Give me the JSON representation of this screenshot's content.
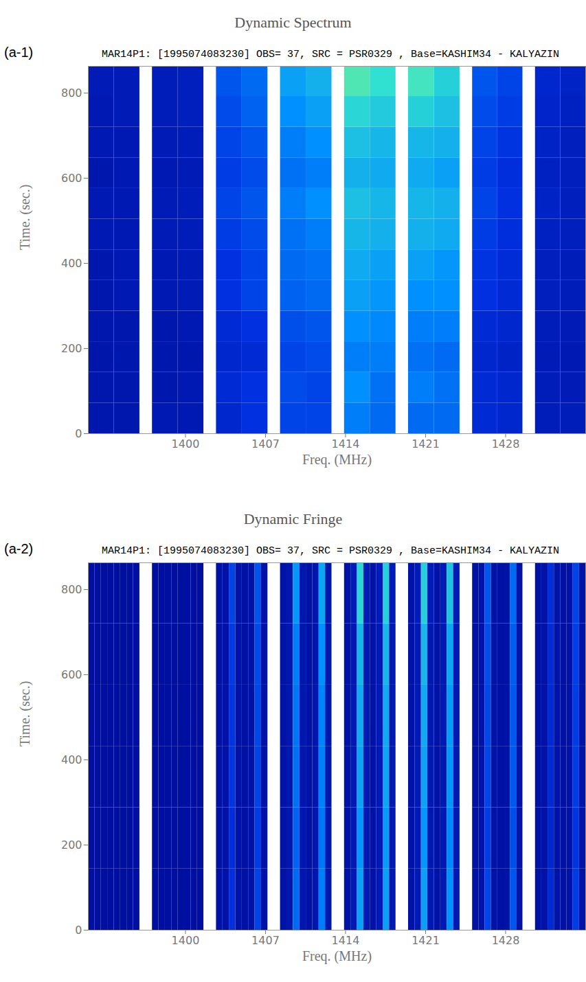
{
  "chart_data": [
    {
      "type": "heatmap",
      "title": "Dynamic Spectrum",
      "panel_label": "(a-1)",
      "subtitle": "MAR14P1: [1995074083230] OBS= 37, SRC = PSR0329 , Base=KASHIM34 - KALYAZIN",
      "x_label": "Freq. (MHz)",
      "y_label": "Time. (sec.)",
      "xlim": [
        1391.5,
        1435.0
      ],
      "xticks": [
        1400,
        1407,
        1414,
        1421,
        1428
      ],
      "ylim": [
        0,
        863
      ],
      "yticks": [
        0,
        200,
        400,
        600,
        800
      ],
      "zlim": [
        0,
        1
      ],
      "bands": [
        [
          1391.5,
          1396.0
        ],
        [
          1397.1,
          1401.6
        ],
        [
          1402.7,
          1407.2
        ],
        [
          1408.3,
          1412.8
        ],
        [
          1413.9,
          1418.4
        ],
        [
          1419.5,
          1424.0
        ],
        [
          1425.1,
          1429.5
        ],
        [
          1430.6,
          1435.0
        ]
      ],
      "time_edges": [
        0,
        72,
        144,
        216,
        288,
        360,
        432,
        504,
        576,
        648,
        720,
        792,
        863
      ],
      "cells": [
        [
          [
            0.12,
            0.12
          ],
          [
            0.13,
            0.13
          ],
          [
            0.2,
            0.25
          ],
          [
            0.3,
            0.3
          ],
          [
            0.45,
            0.4
          ],
          [
            0.4,
            0.4
          ],
          [
            0.22,
            0.2
          ],
          [
            0.15,
            0.15
          ]
        ],
        [
          [
            0.12,
            0.12
          ],
          [
            0.12,
            0.13
          ],
          [
            0.22,
            0.25
          ],
          [
            0.32,
            0.3
          ],
          [
            0.5,
            0.42
          ],
          [
            0.45,
            0.42
          ],
          [
            0.22,
            0.2
          ],
          [
            0.15,
            0.14
          ]
        ],
        [
          [
            0.11,
            0.12
          ],
          [
            0.12,
            0.12
          ],
          [
            0.2,
            0.22
          ],
          [
            0.3,
            0.32
          ],
          [
            0.45,
            0.45
          ],
          [
            0.42,
            0.4
          ],
          [
            0.2,
            0.18
          ],
          [
            0.14,
            0.13
          ]
        ],
        [
          [
            0.12,
            0.12
          ],
          [
            0.12,
            0.13
          ],
          [
            0.22,
            0.25
          ],
          [
            0.33,
            0.35
          ],
          [
            0.5,
            0.48
          ],
          [
            0.45,
            0.45
          ],
          [
            0.22,
            0.2
          ],
          [
            0.15,
            0.14
          ]
        ],
        [
          [
            0.12,
            0.13
          ],
          [
            0.13,
            0.14
          ],
          [
            0.25,
            0.3
          ],
          [
            0.38,
            0.4
          ],
          [
            0.55,
            0.52
          ],
          [
            0.5,
            0.5
          ],
          [
            0.25,
            0.22
          ],
          [
            0.16,
            0.15
          ]
        ],
        [
          [
            0.12,
            0.13
          ],
          [
            0.13,
            0.14
          ],
          [
            0.25,
            0.3
          ],
          [
            0.4,
            0.42
          ],
          [
            0.58,
            0.55
          ],
          [
            0.55,
            0.52
          ],
          [
            0.26,
            0.23
          ],
          [
            0.16,
            0.15
          ]
        ],
        [
          [
            0.13,
            0.13
          ],
          [
            0.14,
            0.15
          ],
          [
            0.28,
            0.32
          ],
          [
            0.42,
            0.45
          ],
          [
            0.62,
            0.6
          ],
          [
            0.6,
            0.58
          ],
          [
            0.28,
            0.24
          ],
          [
            0.17,
            0.16
          ]
        ],
        [
          [
            0.13,
            0.13
          ],
          [
            0.14,
            0.15
          ],
          [
            0.3,
            0.35
          ],
          [
            0.45,
            0.5
          ],
          [
            0.65,
            0.62
          ],
          [
            0.62,
            0.6
          ],
          [
            0.3,
            0.25
          ],
          [
            0.18,
            0.16
          ]
        ],
        [
          [
            0.12,
            0.13
          ],
          [
            0.13,
            0.14
          ],
          [
            0.28,
            0.32
          ],
          [
            0.42,
            0.45
          ],
          [
            0.6,
            0.58
          ],
          [
            0.58,
            0.55
          ],
          [
            0.28,
            0.24
          ],
          [
            0.17,
            0.16
          ]
        ],
        [
          [
            0.13,
            0.13
          ],
          [
            0.14,
            0.15
          ],
          [
            0.3,
            0.35
          ],
          [
            0.45,
            0.5
          ],
          [
            0.65,
            0.62
          ],
          [
            0.62,
            0.6
          ],
          [
            0.3,
            0.26
          ],
          [
            0.18,
            0.16
          ]
        ],
        [
          [
            0.13,
            0.14
          ],
          [
            0.15,
            0.16
          ],
          [
            0.32,
            0.38
          ],
          [
            0.5,
            0.55
          ],
          [
            0.72,
            0.68
          ],
          [
            0.7,
            0.65
          ],
          [
            0.32,
            0.28
          ],
          [
            0.19,
            0.17
          ]
        ],
        [
          [
            0.14,
            0.14
          ],
          [
            0.15,
            0.16
          ],
          [
            0.35,
            0.4
          ],
          [
            0.55,
            0.6
          ],
          [
            0.8,
            0.75
          ],
          [
            0.78,
            0.7
          ],
          [
            0.35,
            0.3
          ],
          [
            0.2,
            0.18
          ]
        ]
      ]
    },
    {
      "type": "heatmap",
      "title": "Dynamic Fringe",
      "panel_label": "(a-2)",
      "subtitle": "MAR14P1: [1995074083230] OBS= 37, SRC = PSR0329 , Base=KASHIM34 - KALYAZIN",
      "x_label": "Freq. (MHz)",
      "y_label": "Time. (sec.)",
      "xlim": [
        1391.5,
        1435.0
      ],
      "xticks": [
        1400,
        1407,
        1414,
        1421,
        1428
      ],
      "ylim": [
        0,
        863
      ],
      "yticks": [
        0,
        200,
        400,
        600,
        800
      ],
      "zlim": [
        0,
        1
      ],
      "bands": [
        [
          1391.5,
          1396.0
        ],
        [
          1397.1,
          1401.6
        ],
        [
          1402.7,
          1407.2
        ],
        [
          1408.3,
          1412.8
        ],
        [
          1413.9,
          1418.4
        ],
        [
          1419.5,
          1424.0
        ],
        [
          1425.1,
          1429.5
        ],
        [
          1430.6,
          1435.0
        ]
      ],
      "time_edges": [
        0,
        144,
        288,
        432,
        576,
        720,
        863
      ],
      "cells": [
        [
          [
            0.08,
            0.08,
            0.08,
            0.08,
            0.08,
            0.08,
            0.08,
            0.08
          ],
          [
            0.08,
            0.08,
            0.08,
            0.08,
            0.08,
            0.08,
            0.08,
            0.08
          ],
          [
            0.09,
            0.1,
            0.25,
            0.1,
            0.09,
            0.1,
            0.3,
            0.1
          ],
          [
            0.1,
            0.12,
            0.4,
            0.12,
            0.1,
            0.12,
            0.45,
            0.12
          ],
          [
            0.1,
            0.13,
            0.55,
            0.13,
            0.1,
            0.13,
            0.55,
            0.13
          ],
          [
            0.1,
            0.13,
            0.55,
            0.13,
            0.1,
            0.13,
            0.5,
            0.13
          ],
          [
            0.09,
            0.1,
            0.3,
            0.1,
            0.09,
            0.1,
            0.35,
            0.1
          ],
          [
            0.09,
            0.1,
            0.22,
            0.1,
            0.09,
            0.1,
            0.28,
            0.1
          ]
        ],
        [
          [
            0.08,
            0.08,
            0.08,
            0.08,
            0.08,
            0.08,
            0.08,
            0.08
          ],
          [
            0.08,
            0.08,
            0.08,
            0.08,
            0.08,
            0.08,
            0.08,
            0.08
          ],
          [
            0.09,
            0.1,
            0.24,
            0.1,
            0.09,
            0.1,
            0.28,
            0.1
          ],
          [
            0.1,
            0.12,
            0.38,
            0.12,
            0.1,
            0.12,
            0.43,
            0.12
          ],
          [
            0.1,
            0.13,
            0.52,
            0.13,
            0.1,
            0.13,
            0.53,
            0.13
          ],
          [
            0.1,
            0.13,
            0.52,
            0.13,
            0.1,
            0.13,
            0.48,
            0.13
          ],
          [
            0.09,
            0.1,
            0.28,
            0.1,
            0.09,
            0.1,
            0.33,
            0.1
          ],
          [
            0.09,
            0.1,
            0.2,
            0.1,
            0.09,
            0.1,
            0.26,
            0.1
          ]
        ],
        [
          [
            0.08,
            0.08,
            0.08,
            0.08,
            0.08,
            0.08,
            0.08,
            0.08
          ],
          [
            0.08,
            0.08,
            0.08,
            0.08,
            0.08,
            0.08,
            0.08,
            0.08
          ],
          [
            0.09,
            0.1,
            0.26,
            0.1,
            0.09,
            0.1,
            0.3,
            0.1
          ],
          [
            0.1,
            0.12,
            0.42,
            0.12,
            0.1,
            0.12,
            0.46,
            0.12
          ],
          [
            0.1,
            0.13,
            0.56,
            0.13,
            0.1,
            0.13,
            0.57,
            0.13
          ],
          [
            0.1,
            0.13,
            0.56,
            0.13,
            0.1,
            0.13,
            0.52,
            0.13
          ],
          [
            0.09,
            0.1,
            0.3,
            0.1,
            0.09,
            0.1,
            0.36,
            0.1
          ],
          [
            0.09,
            0.1,
            0.22,
            0.1,
            0.09,
            0.1,
            0.28,
            0.1
          ]
        ],
        [
          [
            0.08,
            0.08,
            0.08,
            0.08,
            0.08,
            0.08,
            0.08,
            0.08
          ],
          [
            0.08,
            0.08,
            0.08,
            0.08,
            0.08,
            0.08,
            0.08,
            0.08
          ],
          [
            0.09,
            0.1,
            0.26,
            0.1,
            0.09,
            0.1,
            0.31,
            0.1
          ],
          [
            0.1,
            0.12,
            0.43,
            0.12,
            0.1,
            0.12,
            0.47,
            0.12
          ],
          [
            0.1,
            0.13,
            0.58,
            0.13,
            0.1,
            0.13,
            0.58,
            0.13
          ],
          [
            0.1,
            0.13,
            0.58,
            0.13,
            0.1,
            0.13,
            0.53,
            0.13
          ],
          [
            0.09,
            0.1,
            0.31,
            0.1,
            0.09,
            0.1,
            0.36,
            0.1
          ],
          [
            0.09,
            0.1,
            0.22,
            0.1,
            0.09,
            0.1,
            0.28,
            0.1
          ]
        ],
        [
          [
            0.08,
            0.08,
            0.08,
            0.08,
            0.08,
            0.08,
            0.08,
            0.08
          ],
          [
            0.08,
            0.08,
            0.08,
            0.08,
            0.08,
            0.08,
            0.08,
            0.08
          ],
          [
            0.09,
            0.1,
            0.27,
            0.1,
            0.09,
            0.1,
            0.32,
            0.1
          ],
          [
            0.1,
            0.12,
            0.45,
            0.12,
            0.1,
            0.12,
            0.5,
            0.12
          ],
          [
            0.1,
            0.13,
            0.62,
            0.13,
            0.1,
            0.13,
            0.62,
            0.13
          ],
          [
            0.1,
            0.13,
            0.62,
            0.13,
            0.1,
            0.13,
            0.57,
            0.13
          ],
          [
            0.09,
            0.1,
            0.32,
            0.1,
            0.09,
            0.1,
            0.37,
            0.1
          ],
          [
            0.09,
            0.1,
            0.23,
            0.1,
            0.09,
            0.1,
            0.29,
            0.1
          ]
        ],
        [
          [
            0.08,
            0.08,
            0.08,
            0.08,
            0.08,
            0.08,
            0.08,
            0.08
          ],
          [
            0.08,
            0.08,
            0.08,
            0.08,
            0.08,
            0.08,
            0.08,
            0.08
          ],
          [
            0.09,
            0.1,
            0.3,
            0.1,
            0.09,
            0.1,
            0.34,
            0.1
          ],
          [
            0.1,
            0.12,
            0.52,
            0.12,
            0.1,
            0.12,
            0.57,
            0.12
          ],
          [
            0.1,
            0.14,
            0.72,
            0.14,
            0.1,
            0.14,
            0.7,
            0.14
          ],
          [
            0.1,
            0.14,
            0.7,
            0.14,
            0.1,
            0.14,
            0.66,
            0.14
          ],
          [
            0.09,
            0.1,
            0.35,
            0.1,
            0.09,
            0.1,
            0.4,
            0.1
          ],
          [
            0.09,
            0.1,
            0.24,
            0.1,
            0.09,
            0.1,
            0.3,
            0.1
          ]
        ]
      ]
    }
  ]
}
